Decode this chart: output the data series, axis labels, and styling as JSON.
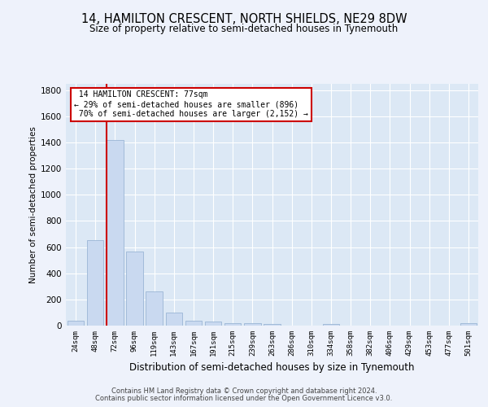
{
  "title1": "14, HAMILTON CRESCENT, NORTH SHIELDS, NE29 8DW",
  "title2": "Size of property relative to semi-detached houses in Tynemouth",
  "xlabel": "Distribution of semi-detached houses by size in Tynemouth",
  "ylabel": "Number of semi-detached properties",
  "categories": [
    "24sqm",
    "48sqm",
    "72sqm",
    "96sqm",
    "119sqm",
    "143sqm",
    "167sqm",
    "191sqm",
    "215sqm",
    "239sqm",
    "263sqm",
    "286sqm",
    "310sqm",
    "334sqm",
    "358sqm",
    "382sqm",
    "406sqm",
    "429sqm",
    "453sqm",
    "477sqm",
    "501sqm"
  ],
  "values": [
    35,
    650,
    1420,
    565,
    260,
    100,
    38,
    28,
    18,
    18,
    10,
    0,
    0,
    15,
    0,
    0,
    0,
    0,
    0,
    0,
    18
  ],
  "bar_color": "#c9d9f0",
  "bar_edge_color": "#9ab5d5",
  "property_sqm": 77,
  "pct_smaller": 29,
  "count_smaller": 896,
  "pct_larger": 70,
  "count_larger": 2152,
  "annotation_box_facecolor": "#ffffff",
  "annotation_border_color": "#cc0000",
  "red_line_color": "#cc0000",
  "ylim": [
    0,
    1850
  ],
  "yticks": [
    0,
    200,
    400,
    600,
    800,
    1000,
    1200,
    1400,
    1600,
    1800
  ],
  "footer1": "Contains HM Land Registry data © Crown copyright and database right 2024.",
  "footer2": "Contains public sector information licensed under the Open Government Licence v3.0.",
  "background_color": "#eef2fb",
  "plot_bg_color": "#dce8f5",
  "grid_color": "#ffffff",
  "title1_fontsize": 10.5,
  "title2_fontsize": 8.5
}
